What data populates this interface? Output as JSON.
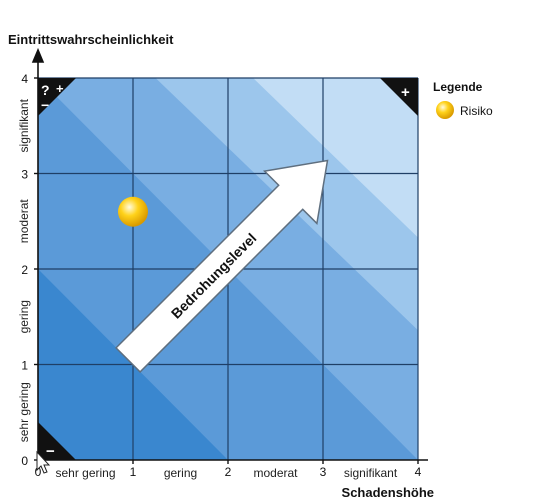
{
  "y_axis": {
    "title": "Eintrittswahrscheinlichkeit",
    "ticks": [
      "0",
      "1",
      "2",
      "3",
      "4"
    ],
    "band_labels": [
      "sehr gering",
      "gering",
      "moderat",
      "signifikant"
    ]
  },
  "x_axis": {
    "title": "Schadenshöhe",
    "ticks": [
      "0",
      "1",
      "2",
      "3",
      "4"
    ],
    "band_labels": [
      "sehr gering",
      "gering",
      "moderat",
      "signifikant"
    ]
  },
  "corner_marks": {
    "top_left": [
      "?",
      "+",
      "−"
    ],
    "top_right": "+",
    "bottom_left": "−"
  },
  "arrow_label": "Bedrohungslevel",
  "legend": {
    "title": "Legende",
    "items": [
      {
        "label": "Risiko",
        "marker": "yellow-sphere"
      }
    ]
  },
  "risks": [
    {
      "x": 1.0,
      "y": 2.6
    }
  ],
  "colors": {
    "diag_darkest": "#3a87cf",
    "diag_dark": "#5b9ad8",
    "diag_mid": "#79aee2",
    "diag_light": "#9cc6ec",
    "diag_lightest": "#c2ddf5",
    "grid_line": "#1f3f66",
    "risk": "#ffd21a",
    "arrow_fill": "#ffffff"
  }
}
